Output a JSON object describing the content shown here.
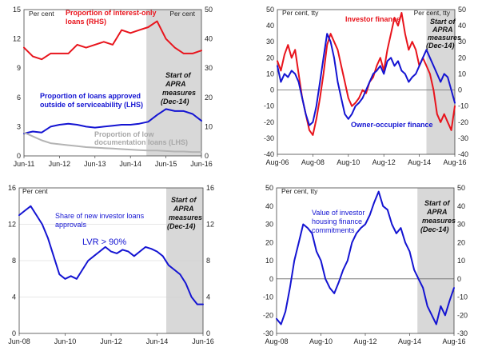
{
  "colors": {
    "red": "#e8141c",
    "blue": "#1414d2",
    "gray": "#b4b4b4",
    "shade": "#d8d8d8",
    "zero": "#777777"
  },
  "chart_data": [
    {
      "type": "line",
      "x_ticks": [
        "Jun-11",
        "Jun-12",
        "Jun-13",
        "Jun-14",
        "Jun-15",
        "Jun-16"
      ],
      "left_axis": {
        "label": "Per cent",
        "range": [
          0,
          15
        ],
        "ticks": [
          "0",
          "3",
          "6",
          "9",
          "12",
          "15"
        ]
      },
      "right_axis": {
        "label": "Per cent",
        "range": [
          0,
          50
        ],
        "ticks": [
          "0",
          "10",
          "20",
          "30",
          "40",
          "50"
        ]
      },
      "shaded_from": "Dec-14",
      "annotations": {
        "apra": [
          "Start of",
          "APRA",
          "measures",
          "(Dec-14)"
        ]
      },
      "series": [
        {
          "name_lines": [
            "Proportion of interest-only",
            "loans (RHS)"
          ],
          "axis": "right",
          "color": "red",
          "x": [
            2011.5,
            2011.75,
            2012.0,
            2012.25,
            2012.5,
            2012.75,
            2013.0,
            2013.25,
            2013.5,
            2013.75,
            2014.0,
            2014.25,
            2014.5,
            2014.75,
            2015.0,
            2015.25,
            2015.5,
            2015.75,
            2016.0,
            2016.25,
            2016.5
          ],
          "values": [
            37,
            34,
            33,
            35,
            35,
            35,
            38,
            37,
            38,
            39,
            38,
            43,
            42,
            43,
            44,
            46,
            40,
            37,
            35,
            35,
            36
          ]
        },
        {
          "name_lines": [
            "Proportion of loans approved",
            "outside of serviceability (LHS)"
          ],
          "axis": "left",
          "color": "blue",
          "x": [
            2011.5,
            2011.75,
            2012.0,
            2012.25,
            2012.5,
            2012.75,
            2013.0,
            2013.25,
            2013.5,
            2013.75,
            2014.0,
            2014.25,
            2014.5,
            2014.75,
            2015.0,
            2015.25,
            2015.5,
            2015.75,
            2016.0,
            2016.25,
            2016.5
          ],
          "values": [
            2.3,
            2.5,
            2.4,
            3.0,
            3.2,
            3.3,
            3.2,
            3.0,
            2.9,
            3.0,
            3.1,
            3.2,
            3.2,
            3.3,
            3.5,
            4.2,
            4.8,
            4.6,
            4.6,
            4.3,
            3.6
          ]
        },
        {
          "name_lines": [
            "Proportion of low",
            "documentation loans (LHS)"
          ],
          "axis": "left",
          "color": "gray",
          "x": [
            2011.5,
            2011.75,
            2012.0,
            2012.25,
            2012.5,
            2012.75,
            2013.0,
            2013.25,
            2013.5,
            2013.75,
            2014.0,
            2014.25,
            2014.5,
            2014.75,
            2015.0,
            2015.25,
            2015.5,
            2015.75,
            2016.0,
            2016.25,
            2016.5
          ],
          "values": [
            2.4,
            2.0,
            1.6,
            1.3,
            1.2,
            1.1,
            1.0,
            0.9,
            0.85,
            0.8,
            0.75,
            0.7,
            0.65,
            0.6,
            0.55,
            0.55,
            0.5,
            0.45,
            0.45,
            0.4,
            0.4
          ]
        }
      ]
    },
    {
      "type": "line",
      "x_ticks": [
        "Aug-06",
        "Aug-08",
        "Aug-10",
        "Aug-12",
        "Aug-14",
        "Aug-16"
      ],
      "left_axis": {
        "label": "Per cent, tty",
        "range": [
          -40,
          50
        ],
        "ticks": [
          "-40",
          "-30",
          "-20",
          "-10",
          "0",
          "10",
          "20",
          "30",
          "40",
          "50"
        ]
      },
      "right_axis": {
        "label": "Per cent, tty",
        "range": [
          -40,
          50
        ],
        "ticks": [
          "-40",
          "-30",
          "-20",
          "-10",
          "0",
          "10",
          "20",
          "30",
          "40",
          "50"
        ]
      },
      "shaded_from": "Dec-14",
      "annotations": {
        "apra": [
          "Start of",
          "APRA",
          "measures",
          "(Dec-14)"
        ]
      },
      "series": [
        {
          "name_lines": [
            "Investor finance"
          ],
          "color": "red",
          "x": [
            2006.6,
            2006.8,
            2007.0,
            2007.2,
            2007.4,
            2007.6,
            2007.8,
            2008.0,
            2008.2,
            2008.4,
            2008.6,
            2008.8,
            2009.0,
            2009.2,
            2009.4,
            2009.6,
            2009.8,
            2010.0,
            2010.2,
            2010.4,
            2010.6,
            2010.8,
            2011.0,
            2011.2,
            2011.4,
            2011.6,
            2011.8,
            2012.0,
            2012.2,
            2012.4,
            2012.6,
            2012.8,
            2013.0,
            2013.2,
            2013.4,
            2013.6,
            2013.8,
            2014.0,
            2014.2,
            2014.4,
            2014.6,
            2014.8,
            2015.0,
            2015.2,
            2015.4,
            2015.6,
            2015.8,
            2016.0,
            2016.2,
            2016.4,
            2016.6
          ],
          "values": [
            18,
            12,
            22,
            28,
            20,
            25,
            10,
            -5,
            -15,
            -25,
            -28,
            -18,
            -5,
            10,
            28,
            35,
            30,
            25,
            15,
            5,
            -5,
            -10,
            -8,
            -5,
            0,
            -2,
            5,
            8,
            15,
            20,
            12,
            25,
            35,
            45,
            40,
            48,
            35,
            25,
            30,
            25,
            15,
            20,
            15,
            10,
            0,
            -15,
            -20,
            -15,
            -20,
            -25,
            -10
          ]
        },
        {
          "name_lines": [
            "Owner-occupier finance"
          ],
          "color": "blue",
          "x": [
            2006.6,
            2006.8,
            2007.0,
            2007.2,
            2007.4,
            2007.6,
            2007.8,
            2008.0,
            2008.2,
            2008.4,
            2008.6,
            2008.8,
            2009.0,
            2009.2,
            2009.4,
            2009.6,
            2009.8,
            2010.0,
            2010.2,
            2010.4,
            2010.6,
            2010.8,
            2011.0,
            2011.2,
            2011.4,
            2011.6,
            2011.8,
            2012.0,
            2012.2,
            2012.4,
            2012.6,
            2012.8,
            2013.0,
            2013.2,
            2013.4,
            2013.6,
            2013.8,
            2014.0,
            2014.2,
            2014.4,
            2014.6,
            2014.8,
            2015.0,
            2015.2,
            2015.4,
            2015.6,
            2015.8,
            2016.0,
            2016.2,
            2016.4,
            2016.6
          ],
          "values": [
            15,
            5,
            10,
            8,
            12,
            10,
            5,
            -5,
            -15,
            -22,
            -20,
            -10,
            5,
            20,
            35,
            30,
            20,
            5,
            -5,
            -15,
            -18,
            -15,
            -10,
            -8,
            -5,
            0,
            5,
            10,
            12,
            15,
            10,
            18,
            20,
            15,
            18,
            12,
            10,
            5,
            8,
            10,
            15,
            20,
            25,
            20,
            15,
            10,
            5,
            10,
            8,
            0,
            -8
          ]
        }
      ]
    },
    {
      "type": "line",
      "x_ticks": [
        "Jun-08",
        "Jun-10",
        "Jun-12",
        "Jun-14",
        "Jun-16"
      ],
      "left_axis": {
        "label": "Per cent",
        "range": [
          0,
          16
        ],
        "ticks": [
          "0",
          "4",
          "8",
          "12",
          "16"
        ]
      },
      "right_axis": {
        "range": [
          0,
          16
        ],
        "ticks": [
          "0",
          "4",
          "8",
          "12",
          "16"
        ]
      },
      "shaded_from": "Dec-14",
      "annotations": {
        "apra": [
          "Start of",
          "APRA",
          "measures",
          "(Dec-14)"
        ],
        "label_lines": [
          "Share of new investor loans",
          "approvals"
        ],
        "lvr": "LVR > 90%"
      },
      "series": [
        {
          "name": "LVR > 90%",
          "color": "blue",
          "x": [
            2008.5,
            2008.75,
            2009.0,
            2009.25,
            2009.5,
            2009.75,
            2010.0,
            2010.25,
            2010.5,
            2010.75,
            2011.0,
            2011.25,
            2011.5,
            2011.75,
            2012.0,
            2012.25,
            2012.5,
            2012.75,
            2013.0,
            2013.25,
            2013.5,
            2013.75,
            2014.0,
            2014.25,
            2014.5,
            2014.75,
            2015.0,
            2015.25,
            2015.5,
            2015.75,
            2016.0,
            2016.25,
            2016.5
          ],
          "values": [
            13.0,
            13.5,
            14.0,
            13.0,
            12.0,
            10.5,
            8.5,
            6.5,
            6.0,
            6.3,
            6.0,
            7.0,
            8.0,
            8.5,
            9.0,
            9.5,
            9.0,
            8.8,
            9.2,
            9.0,
            8.5,
            9.0,
            9.5,
            9.3,
            9.0,
            8.5,
            7.5,
            7.0,
            6.5,
            5.5,
            4.0,
            3.2,
            3.2
          ]
        }
      ]
    },
    {
      "type": "line",
      "x_ticks": [
        "Aug-08",
        "Aug-10",
        "Aug-12",
        "Aug-14",
        "Aug-16"
      ],
      "left_axis": {
        "label": "Per cent, tty",
        "range": [
          -30,
          50
        ],
        "ticks": [
          "-30",
          "-20",
          "-10",
          "0",
          "10",
          "20",
          "30",
          "40",
          "50"
        ]
      },
      "right_axis": {
        "range": [
          -30,
          50
        ],
        "ticks": [
          "-30",
          "-20",
          "-10",
          "0",
          "10",
          "20",
          "30",
          "40",
          "50"
        ]
      },
      "shaded_from": "Dec-14",
      "annotations": {
        "apra": [
          "Start of",
          "APRA",
          "measures",
          "(Dec-14)"
        ],
        "label_lines": [
          "Value of investor",
          "housing finance",
          "commitments"
        ]
      },
      "series": [
        {
          "color": "blue",
          "x": [
            2008.6,
            2008.8,
            2009.0,
            2009.2,
            2009.4,
            2009.6,
            2009.8,
            2010.0,
            2010.2,
            2010.4,
            2010.6,
            2010.8,
            2011.0,
            2011.2,
            2011.4,
            2011.6,
            2011.8,
            2012.0,
            2012.2,
            2012.4,
            2012.6,
            2012.8,
            2013.0,
            2013.2,
            2013.4,
            2013.6,
            2013.8,
            2014.0,
            2014.2,
            2014.4,
            2014.6,
            2014.8,
            2015.0,
            2015.2,
            2015.4,
            2015.6,
            2015.8,
            2016.0,
            2016.2,
            2016.4,
            2016.6
          ],
          "values": [
            -22,
            -25,
            -18,
            -5,
            10,
            20,
            30,
            28,
            25,
            15,
            10,
            0,
            -5,
            -8,
            -2,
            5,
            10,
            20,
            25,
            28,
            30,
            35,
            42,
            48,
            40,
            38,
            30,
            25,
            28,
            20,
            15,
            5,
            0,
            -5,
            -15,
            -20,
            -25,
            -15,
            -20,
            -12,
            -5
          ]
        }
      ]
    }
  ]
}
